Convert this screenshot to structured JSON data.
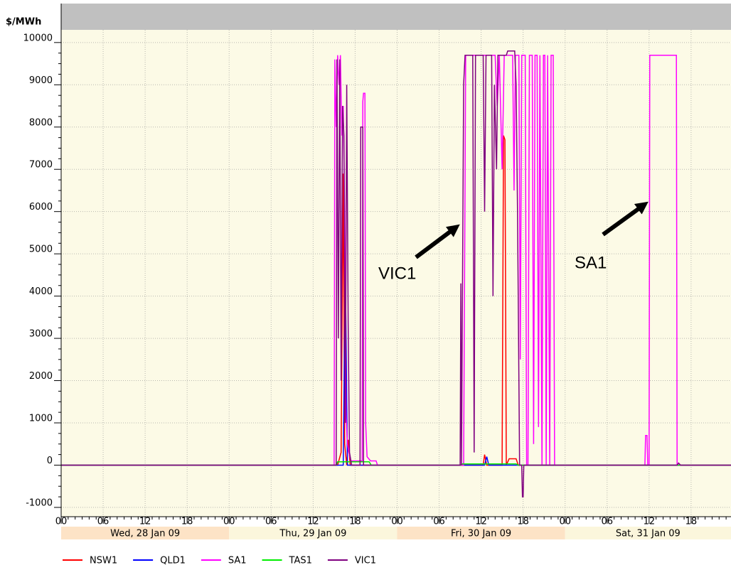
{
  "chart_data": {
    "type": "line",
    "y_label": "$/MWh",
    "xlim": [
      0,
      95.7
    ],
    "ylim": [
      -1220,
      10300
    ],
    "yticks": [
      -1000,
      0,
      1000,
      2000,
      3000,
      4000,
      5000,
      6000,
      7000,
      8000,
      9000,
      10000
    ],
    "xticks": [
      {
        "value": 0,
        "label": "00"
      },
      {
        "value": 6,
        "label": "06"
      },
      {
        "value": 12,
        "label": "12"
      },
      {
        "value": 18,
        "label": "18"
      },
      {
        "value": 24,
        "label": "00"
      },
      {
        "value": 30,
        "label": "06"
      },
      {
        "value": 36,
        "label": "12"
      },
      {
        "value": 42,
        "label": "18"
      },
      {
        "value": 48,
        "label": "00"
      },
      {
        "value": 54,
        "label": "06"
      },
      {
        "value": 60,
        "label": "12"
      },
      {
        "value": 66,
        "label": "18"
      },
      {
        "value": 72,
        "label": "00"
      },
      {
        "value": 78,
        "label": "06"
      },
      {
        "value": 84,
        "label": "12"
      },
      {
        "value": 90,
        "label": "18"
      }
    ],
    "days": [
      "Wed, 28 Jan 09",
      "Thu, 29 Jan 09",
      "Fri, 30 Jan 09",
      "Sat, 31 Jan 09"
    ],
    "grid": true,
    "annotations": [
      {
        "text": "VIC1"
      },
      {
        "text": "SA1"
      }
    ],
    "series": [
      {
        "name": "NSW1",
        "color": "#ff0000",
        "x": [
          0,
          39.5,
          40.0,
          40.3,
          40.5,
          40.8,
          41.0,
          41.3,
          60.3,
          60.5,
          60.8,
          63.0,
          63.2,
          63.4,
          63.6,
          64.0,
          65.0,
          65.3,
          95.7
        ],
        "values": [
          0,
          0,
          300,
          6900,
          500,
          0,
          600,
          0,
          0,
          250,
          0,
          0,
          7800,
          7700,
          0,
          150,
          150,
          0,
          0
        ]
      },
      {
        "name": "QLD1",
        "color": "#0000ff",
        "x": [
          0,
          40.3,
          40.6,
          40.9,
          60.5,
          60.8,
          61.1,
          95.7
        ],
        "values": [
          0,
          0,
          4700,
          0,
          0,
          200,
          0,
          0
        ]
      },
      {
        "name": "SA1",
        "color": "#ff00ff",
        "x": [
          0,
          39.0,
          39.1,
          39.3,
          39.5,
          39.7,
          39.9,
          40.1,
          40.3,
          40.5,
          40.7,
          40.9,
          41.1,
          41.4,
          43.0,
          43.1,
          43.2,
          43.4,
          43.5,
          43.7,
          44.2,
          45.0,
          45.2,
          56.0,
          57.5,
          57.8,
          62.0,
          62.3,
          62.6,
          63.0,
          63.3,
          64.5,
          64.7,
          64.9,
          65.4,
          65.6,
          65.8,
          66.3,
          66.5,
          66.7,
          66.9,
          67.3,
          67.5,
          67.7,
          68.0,
          68.2,
          68.4,
          68.7,
          68.9,
          69.1,
          69.3,
          69.5,
          69.8,
          70.0,
          70.3,
          70.5,
          83.4,
          83.5,
          83.7,
          83.8,
          84.0,
          84.1,
          87.9,
          88.0,
          95.7
        ],
        "values": [
          0,
          0,
          9600,
          8000,
          9700,
          9000,
          9700,
          7800,
          8500,
          6000,
          1200,
          500,
          300,
          100,
          100,
          8600,
          8800,
          8800,
          1000,
          200,
          100,
          100,
          0,
          0,
          0,
          9700,
          9700,
          8500,
          9700,
          7000,
          9700,
          9700,
          6500,
          9700,
          9700,
          2500,
          9700,
          9700,
          0,
          0,
          9700,
          9700,
          500,
          9700,
          9700,
          900,
          9700,
          0,
          9700,
          9700,
          0,
          9700,
          0,
          9700,
          9700,
          0,
          0,
          700,
          700,
          0,
          0,
          9700,
          9700,
          0,
          0
        ]
      },
      {
        "name": "TAS1",
        "color": "#00ee00",
        "x": [
          0,
          39.3,
          39.5,
          44,
          44.3,
          57,
          57.3,
          65,
          65.3,
          95.7
        ],
        "values": [
          0,
          0,
          80,
          80,
          0,
          0,
          30,
          30,
          0,
          0
        ]
      },
      {
        "name": "VIC1",
        "color": "#800080",
        "x": [
          0,
          39.3,
          39.4,
          39.6,
          39.8,
          40.0,
          40.2,
          40.4,
          40.6,
          40.8,
          41.0,
          41.2,
          41.5,
          42.7,
          42.8,
          43.1,
          43.2,
          57.0,
          57.1,
          57.2,
          57.5,
          57.7,
          58.8,
          59.0,
          59.2,
          60.3,
          60.5,
          60.7,
          61.5,
          61.7,
          61.9,
          62.2,
          62.4,
          63.6,
          63.8,
          64.8,
          65.0,
          65.2,
          65.5,
          65.8,
          65.9,
          66.0,
          66.1,
          88.0,
          88.2,
          88.5,
          95.7
        ],
        "values": [
          0,
          0,
          9600,
          3000,
          9600,
          2000,
          8500,
          7800,
          1000,
          9000,
          3400,
          300,
          0,
          0,
          8000,
          8000,
          0,
          0,
          4300,
          0,
          9000,
          9700,
          9700,
          300,
          9700,
          9700,
          6000,
          9700,
          9700,
          4000,
          9000,
          7000,
          9700,
          9700,
          9800,
          9800,
          9000,
          6000,
          0,
          0,
          -750,
          -750,
          0,
          0,
          50,
          0,
          0
        ]
      }
    ]
  }
}
